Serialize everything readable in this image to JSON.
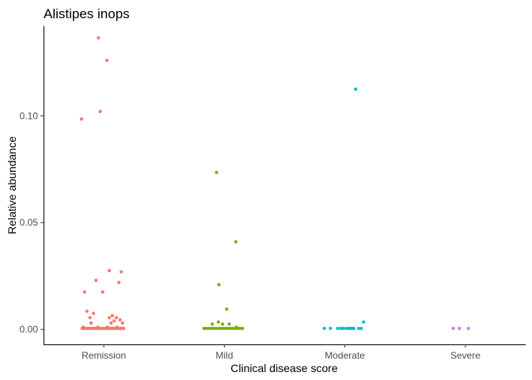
{
  "chart_data": {
    "type": "scatter",
    "title": "Alistipes inops",
    "xlabel": "Clinical disease score",
    "ylabel": "Relative abundance",
    "categories": [
      "Remission",
      "Mild",
      "Moderate",
      "Severe"
    ],
    "ylim": [
      -0.007,
      0.142
    ],
    "yticks": [
      0.0,
      0.05,
      0.1
    ],
    "ytick_labels": [
      "0.00",
      "0.05",
      "0.10"
    ],
    "grid": false,
    "legend": "none",
    "jitter": true,
    "series": [
      {
        "category": "Remission",
        "color": "#F8766D",
        "points": [
          [
            -0.37,
            0.0985
          ],
          [
            -0.09,
            0.1365
          ],
          [
            -0.06,
            0.102
          ],
          [
            0.05,
            0.126
          ],
          [
            -0.32,
            0.0175
          ],
          [
            -0.28,
            0.0085
          ],
          [
            -0.23,
            0.0055
          ],
          [
            -0.13,
            0.023
          ],
          [
            -0.17,
            0.0075
          ],
          [
            -0.02,
            0.0175
          ],
          [
            0.09,
            0.0275
          ],
          [
            0.14,
            0.0065
          ],
          [
            0.21,
            0.0055
          ],
          [
            0.25,
            0.022
          ],
          [
            0.29,
            0.027
          ],
          [
            0.27,
            0.0045
          ],
          [
            0.17,
            0.004
          ],
          [
            0.09,
            0.0055
          ],
          [
            0.31,
            0.003
          ],
          [
            0.12,
            0.003
          ],
          [
            -0.21,
            0.003
          ],
          [
            -0.36,
            0.0005
          ],
          [
            -0.33,
            0.0005
          ],
          [
            -0.3,
            0.0005
          ],
          [
            -0.27,
            0.0005
          ],
          [
            -0.24,
            0.0005
          ],
          [
            -0.21,
            0.0005
          ],
          [
            -0.18,
            0.0005
          ],
          [
            -0.15,
            0.0005
          ],
          [
            -0.12,
            0.0005
          ],
          [
            -0.09,
            0.0005
          ],
          [
            -0.06,
            0.0005
          ],
          [
            -0.03,
            0.0005
          ],
          [
            0.0,
            0.0005
          ],
          [
            0.03,
            0.0005
          ],
          [
            0.06,
            0.0005
          ],
          [
            0.09,
            0.0005
          ],
          [
            0.12,
            0.0005
          ],
          [
            0.15,
            0.0005
          ],
          [
            0.18,
            0.0005
          ],
          [
            0.21,
            0.0005
          ],
          [
            0.24,
            0.0005
          ],
          [
            0.27,
            0.0005
          ],
          [
            0.3,
            0.0005
          ],
          [
            0.33,
            0.0005
          ],
          [
            -0.34,
            0.001
          ],
          [
            -0.1,
            0.001
          ],
          [
            0.06,
            0.001
          ],
          [
            0.22,
            0.001
          ]
        ]
      },
      {
        "category": "Mild",
        "color": "#7CAE00",
        "points": [
          [
            -0.13,
            0.0735
          ],
          [
            -0.09,
            0.021
          ],
          [
            0.19,
            0.041
          ],
          [
            0.04,
            0.0095
          ],
          [
            -0.1,
            0.0035
          ],
          [
            -0.03,
            0.0025
          ],
          [
            0.08,
            0.0025
          ],
          [
            -0.2,
            0.0025
          ],
          [
            -0.34,
            0.0005
          ],
          [
            -0.3,
            0.0005
          ],
          [
            -0.26,
            0.0005
          ],
          [
            -0.22,
            0.0005
          ],
          [
            -0.18,
            0.0005
          ],
          [
            -0.14,
            0.0005
          ],
          [
            -0.1,
            0.0005
          ],
          [
            -0.06,
            0.0005
          ],
          [
            -0.02,
            0.0005
          ],
          [
            0.02,
            0.0005
          ],
          [
            0.06,
            0.0005
          ],
          [
            0.1,
            0.0005
          ],
          [
            0.14,
            0.0005
          ],
          [
            0.18,
            0.0005
          ],
          [
            0.22,
            0.0005
          ],
          [
            0.26,
            0.0005
          ],
          [
            0.3,
            0.0005
          ],
          [
            0.2,
            0.001
          ],
          [
            0.23,
            0.0005
          ]
        ]
      },
      {
        "category": "Moderate",
        "color": "#00BFC4",
        "points": [
          [
            0.18,
            0.1125
          ],
          [
            0.31,
            0.0035
          ],
          [
            -0.34,
            0.0005
          ],
          [
            -0.24,
            0.0005
          ],
          [
            -0.12,
            0.0005
          ],
          [
            -0.07,
            0.0005
          ],
          [
            -0.03,
            0.0005
          ],
          [
            0.02,
            0.0005
          ],
          [
            0.06,
            0.0005
          ],
          [
            0.09,
            0.0005
          ],
          [
            0.12,
            0.0005
          ],
          [
            0.15,
            0.0005
          ],
          [
            0.23,
            0.0005
          ],
          [
            0.27,
            0.0005
          ]
        ]
      },
      {
        "category": "Severe",
        "color": "#C77CFF",
        "points": [
          [
            -0.2,
            0.0005
          ],
          [
            -0.1,
            0.0005
          ],
          [
            0.05,
            0.0005
          ]
        ]
      }
    ]
  }
}
